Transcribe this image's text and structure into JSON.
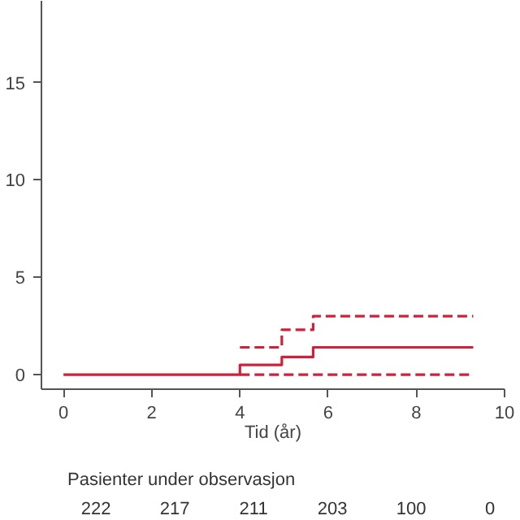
{
  "chart_data": {
    "type": "step",
    "xlabel": "Tid (år)",
    "xlim": [
      -0.5,
      10
    ],
    "ylim": [
      -0.75,
      19.2
    ],
    "xticks": [
      0,
      2,
      4,
      6,
      8,
      10
    ],
    "yticks": [
      0,
      5,
      10,
      15
    ],
    "grid": false,
    "series": [
      {
        "color": "#d0203a",
        "line_style": "solid",
        "x": [
          0,
          4,
          4.95,
          5.66,
          9.29
        ],
        "values": [
          0,
          0.5,
          0.9,
          1.4,
          1.4
        ]
      },
      {
        "color": "#d0203a",
        "line_style": "dashed",
        "x": [
          4,
          4.95,
          5.66,
          9.29
        ],
        "values": [
          1.4,
          2.3,
          3.0,
          3.0
        ]
      },
      {
        "color": "#d0203a",
        "line_style": "dashed",
        "x": [
          4,
          9.29
        ],
        "values": [
          0,
          0
        ]
      }
    ],
    "annotations": [
      "Pasienter under observasjon",
      "222",
      "217",
      "211",
      "203",
      "100",
      "0"
    ]
  }
}
